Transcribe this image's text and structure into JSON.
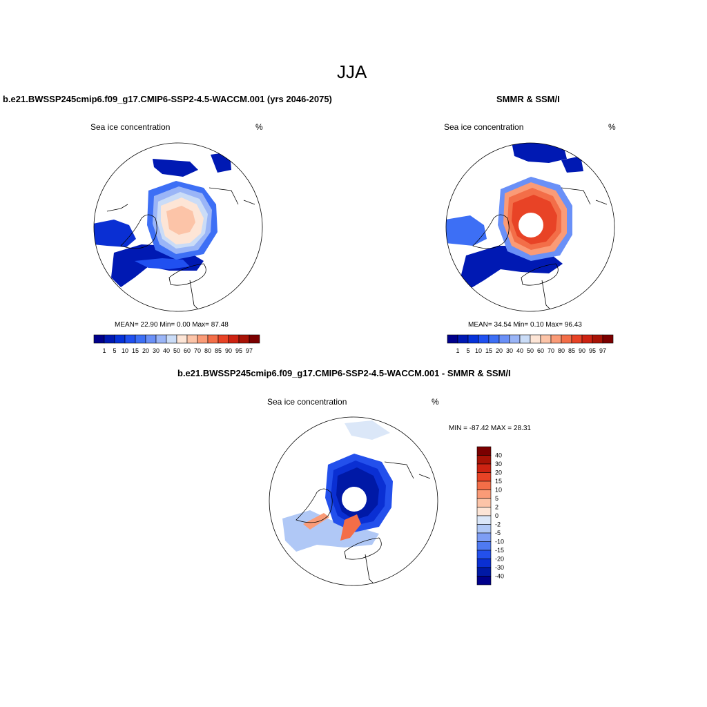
{
  "page": {
    "season_title": "JJA"
  },
  "panel_model": {
    "header": "b.e21.BWSSP245cmip6.f09_g17.CMIP6-SSP2-4.5-WACCM.001 (yrs 2046-2075)",
    "left_label": "Sea ice concentration",
    "units": "%",
    "stats": "MEAN=  22.90  Min=   0.00  Max=  87.48"
  },
  "panel_obs": {
    "header": "SMMR & SSM/I",
    "left_label": "Sea ice concentration",
    "units": "%",
    "stats": "MEAN=  34.54  Min=   0.10  Max=  96.43"
  },
  "panel_diff": {
    "header": "b.e21.BWSSP245cmip6.f09_g17.CMIP6-SSP2-4.5-WACCM.001 - SMMR & SSM/I",
    "left_label": "Sea ice concentration",
    "units": "%",
    "minmax": "MIN = -87.42 MAX =  28.31"
  },
  "colorbar_abs": {
    "labels": [
      "1",
      "5",
      "10",
      "15",
      "20",
      "30",
      "40",
      "50",
      "60",
      "70",
      "80",
      "85",
      "90",
      "95",
      "97"
    ],
    "colors": [
      "#00008b",
      "#0019b3",
      "#0632d9",
      "#2050f0",
      "#3d6ff5",
      "#6a90f7",
      "#9ab5f7",
      "#cadcf7",
      "#fde5d6",
      "#fcc4a8",
      "#fa9b77",
      "#f36e48",
      "#e84326",
      "#cd2312",
      "#a81306",
      "#7b0000"
    ]
  },
  "colorbar_diff": {
    "labels": [
      "40",
      "30",
      "20",
      "15",
      "10",
      "5",
      "2",
      "0",
      "-2",
      "-5",
      "-10",
      "-15",
      "-20",
      "-30",
      "-40"
    ],
    "colors": [
      "#7b0000",
      "#a81306",
      "#cd2312",
      "#e84326",
      "#f36e48",
      "#fa9b77",
      "#fcc4a8",
      "#fde5d6",
      "#dbe7f8",
      "#b0c8f6",
      "#7e9ef5",
      "#4f7af2",
      "#2350ec",
      "#0a2fd3",
      "#0019a6",
      "#00008b"
    ]
  }
}
